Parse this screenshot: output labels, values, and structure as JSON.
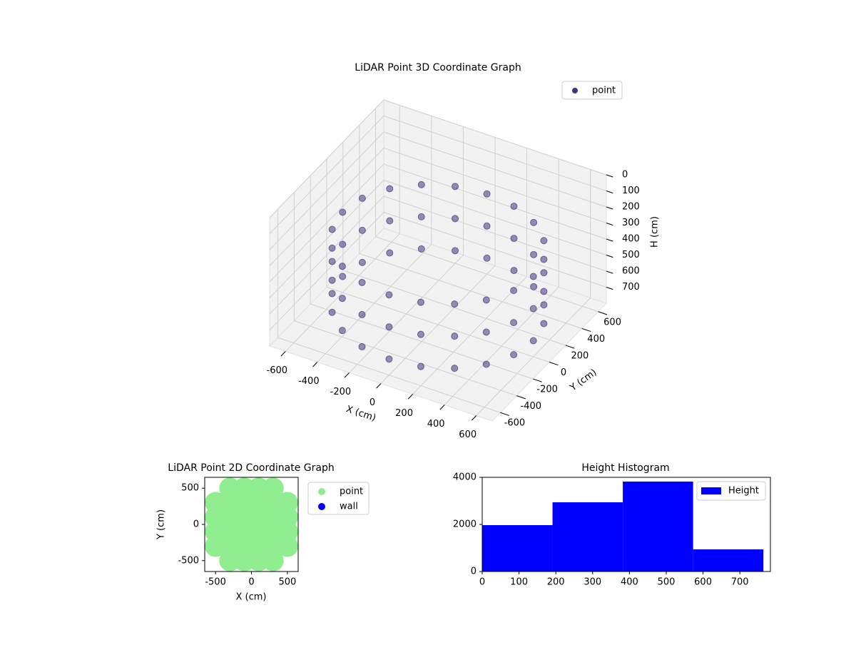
{
  "chart_data": [
    {
      "type": "scatter3d",
      "title": "LiDAR Point 3D Coordinate Graph",
      "xlabel": "X (cm)",
      "ylabel": "Y (cm)",
      "zlabel": "H (cm)",
      "xlim": [
        -700,
        700
      ],
      "ylim": [
        -700,
        700
      ],
      "zlim": [
        0,
        800
      ],
      "zinvert": true,
      "xticks": [
        -600,
        -400,
        -200,
        0,
        200,
        400,
        600
      ],
      "yticks": [
        -600,
        -400,
        -200,
        0,
        200,
        400,
        600
      ],
      "zticks": [
        0,
        100,
        200,
        300,
        400,
        500,
        600,
        700
      ],
      "grid": true,
      "legend": "upper right",
      "series": [
        {
          "name": "point",
          "color": "#46337e",
          "x": [
            600,
            571,
            485,
            353,
            185,
            0,
            -185,
            -353,
            -485,
            -571,
            -600,
            -571,
            -485,
            -353,
            -185,
            0,
            185,
            353,
            485,
            571,
            600,
            571,
            485,
            353,
            185,
            0,
            -185,
            -353,
            -485,
            -571,
            -600,
            -571,
            -485,
            -353,
            -185,
            0,
            185,
            353,
            485,
            571,
            600,
            571,
            485,
            353,
            185,
            0,
            -185,
            -353,
            -485,
            -571,
            -600,
            -571,
            -485,
            -353,
            -185,
            0,
            185,
            353,
            485,
            571
          ],
          "y": [
            0,
            185,
            353,
            485,
            571,
            600,
            571,
            485,
            353,
            185,
            0,
            -185,
            -353,
            -485,
            -571,
            -600,
            -571,
            -485,
            -353,
            -185,
            0,
            185,
            353,
            485,
            571,
            600,
            571,
            485,
            353,
            185,
            0,
            -185,
            -353,
            -485,
            -571,
            -600,
            -571,
            -485,
            -353,
            -185,
            0,
            185,
            353,
            485,
            571,
            600,
            571,
            485,
            353,
            185,
            0,
            -185,
            -353,
            -485,
            -571,
            -600,
            -571,
            -485,
            -353,
            -185
          ],
          "z": [
            300,
            300,
            300,
            300,
            300,
            300,
            300,
            300,
            300,
            300,
            300,
            300,
            300,
            300,
            300,
            300,
            300,
            300,
            300,
            300,
            500,
            500,
            500,
            500,
            500,
            500,
            500,
            500,
            500,
            500,
            500,
            500,
            500,
            500,
            500,
            500,
            500,
            500,
            500,
            500,
            700,
            700,
            700,
            700,
            700,
            700,
            700,
            700,
            700,
            700,
            700,
            700,
            700,
            700,
            700,
            700,
            700,
            700,
            700,
            700
          ]
        }
      ]
    },
    {
      "type": "scatter",
      "title": "LiDAR Point 2D Coordinate Graph",
      "xlabel": "X (cm)",
      "ylabel": "Y (cm)",
      "xlim": [
        -650,
        650
      ],
      "ylim": [
        -650,
        650
      ],
      "xticks": [
        -500,
        0,
        500
      ],
      "yticks": [
        -500,
        0,
        500
      ],
      "legend": "upper right outside",
      "series": [
        {
          "name": "point",
          "color": "#90ee90",
          "x": [
            -500,
            -500,
            -500,
            -500,
            -300,
            -300,
            -300,
            -300,
            -300,
            -300,
            -100,
            -100,
            -100,
            -100,
            -100,
            -100,
            100,
            100,
            100,
            100,
            100,
            100,
            300,
            300,
            300,
            300,
            300,
            300,
            500,
            500,
            500,
            500
          ],
          "y": [
            -300,
            -100,
            100,
            300,
            -500,
            -300,
            -100,
            100,
            300,
            500,
            -500,
            -300,
            -100,
            100,
            300,
            500,
            -500,
            -300,
            -100,
            100,
            300,
            500,
            -500,
            -300,
            -100,
            100,
            300,
            500,
            -300,
            -100,
            100,
            300
          ]
        },
        {
          "name": "wall",
          "color": "#0000ff",
          "x": [],
          "y": []
        }
      ]
    },
    {
      "type": "histogram",
      "title": "Height Histogram",
      "name": "Height",
      "color": "#0000ff",
      "bins": [
        0,
        191,
        382,
        573,
        764
      ],
      "values": [
        1970,
        2940,
        3820,
        940
      ],
      "xlim": [
        0,
        783
      ],
      "ylim": [
        0,
        4000
      ],
      "xticks": [
        0,
        100,
        200,
        300,
        400,
        500,
        600,
        700
      ],
      "yticks": [
        0,
        2000,
        4000
      ],
      "legend": "upper right"
    }
  ]
}
